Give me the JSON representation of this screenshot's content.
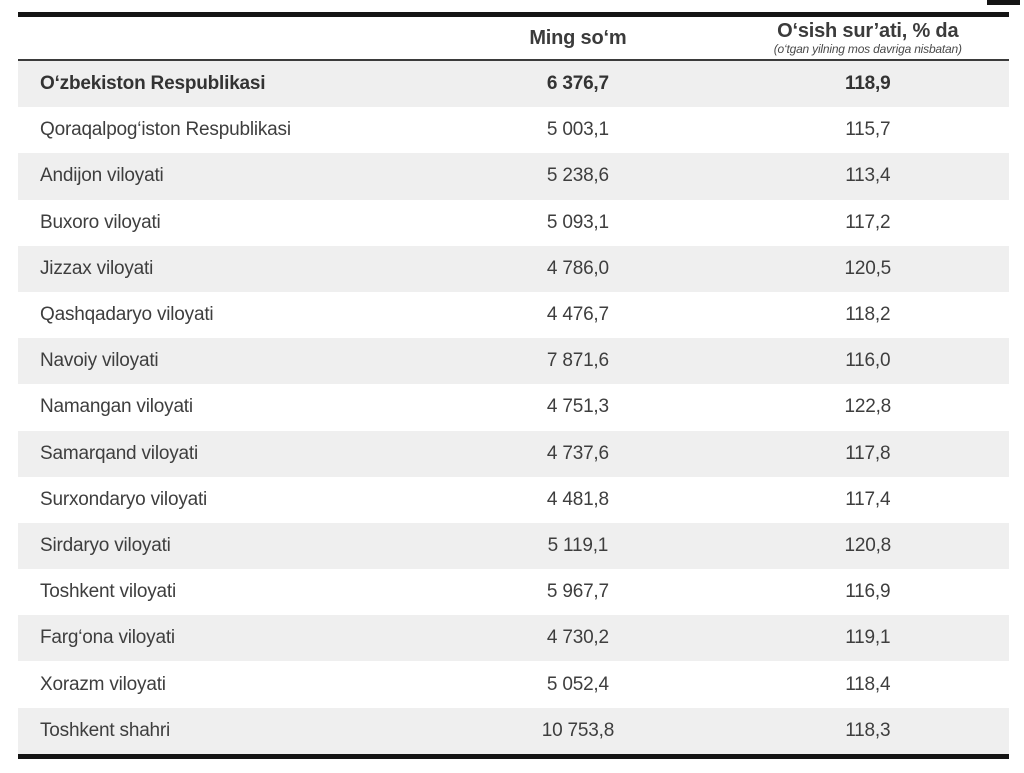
{
  "page": {
    "background_color": "#ffffff",
    "shade_row_color": "#efefef",
    "rule_color": "#141414",
    "text_color": "#3e3e3e"
  },
  "table": {
    "header": {
      "region_label": "",
      "ming_som_label": "Ming so‘m",
      "growth_label": "O‘sish sur’ati, % da",
      "growth_sublabel": "(o‘tgan yilning mos davriga nisbatan)"
    },
    "rows": [
      {
        "region": "O‘zbekiston Respublikasi",
        "ming_som": "6 376,7",
        "growth": "118,9"
      },
      {
        "region": "Qoraqalpog‘iston Respublikasi",
        "ming_som": "5 003,1",
        "growth": "115,7"
      },
      {
        "region": "Andijon viloyati",
        "ming_som": "5 238,6",
        "growth": "113,4"
      },
      {
        "region": "Buxoro viloyati",
        "ming_som": "5 093,1",
        "growth": "117,2"
      },
      {
        "region": "Jizzax viloyati",
        "ming_som": "4 786,0",
        "growth": "120,5"
      },
      {
        "region": "Qashqadaryo viloyati",
        "ming_som": "4 476,7",
        "growth": "118,2"
      },
      {
        "region": "Navoiy viloyati",
        "ming_som": "7 871,6",
        "growth": "116,0"
      },
      {
        "region": "Namangan viloyati",
        "ming_som": "4 751,3",
        "growth": "122,8"
      },
      {
        "region": "Samarqand viloyati",
        "ming_som": "4 737,6",
        "growth": "117,8"
      },
      {
        "region": "Surxondaryo viloyati",
        "ming_som": "4 481,8",
        "growth": "117,4"
      },
      {
        "region": "Sirdaryo viloyati",
        "ming_som": "5 119,1",
        "growth": "120,8"
      },
      {
        "region": "Toshkent viloyati",
        "ming_som": "5 967,7",
        "growth": "116,9"
      },
      {
        "region": "Farg‘ona viloyati",
        "ming_som": "4 730,2",
        "growth": "119,1"
      },
      {
        "region": "Xorazm viloyati",
        "ming_som": "5 052,4",
        "growth": "118,4"
      },
      {
        "region": "Toshkent shahri",
        "ming_som": "10 753,8",
        "growth": "118,3"
      }
    ]
  }
}
